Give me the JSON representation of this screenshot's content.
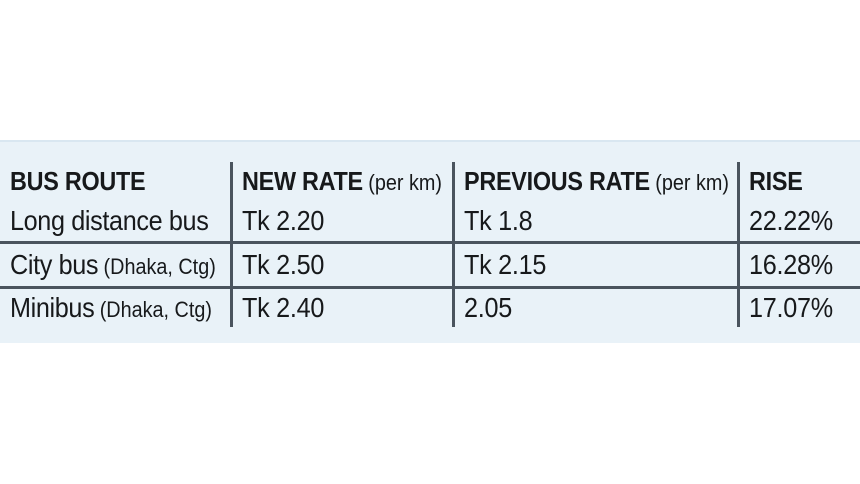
{
  "chart_data": {
    "type": "table",
    "title": "",
    "columns": [
      "BUS ROUTE",
      "NEW RATE (per km)",
      "PREVIOUS RATE (per km)",
      "RISE"
    ],
    "rows": [
      [
        "Long distance bus",
        "Tk 2.20",
        "Tk 1.8",
        "22.22%"
      ],
      [
        "City bus (Dhaka, Ctg)",
        "Tk 2.50",
        "Tk 2.15",
        "16.28%"
      ],
      [
        "Minibus (Dhaka, Ctg)",
        "Tk 2.40",
        "2.05",
        "17.07%"
      ]
    ]
  },
  "header": [
    {
      "label": "BUS ROUTE",
      "suffix": ""
    },
    {
      "label": "NEW RATE",
      "suffix": "(per km)"
    },
    {
      "label": "PREVIOUS RATE",
      "suffix": "(per km)"
    },
    {
      "label": "RISE",
      "suffix": ""
    }
  ],
  "rows": [
    {
      "route": "Long distance bus",
      "note": "",
      "new_rate": "Tk 2.20",
      "prev_rate": "Tk 1.8",
      "rise": "22.22%"
    },
    {
      "route": "City bus",
      "note": "(Dhaka, Ctg)",
      "new_rate": "Tk 2.50",
      "prev_rate": "Tk 2.15",
      "rise": "16.28%"
    },
    {
      "route": "Minibus",
      "note": "(Dhaka, Ctg)",
      "new_rate": "Tk 2.40",
      "prev_rate": "2.05",
      "rise": "17.07%"
    }
  ],
  "colors": {
    "panel_bg": "#e9f2f8",
    "rule": "#4a545e",
    "text": "#17191b"
  }
}
